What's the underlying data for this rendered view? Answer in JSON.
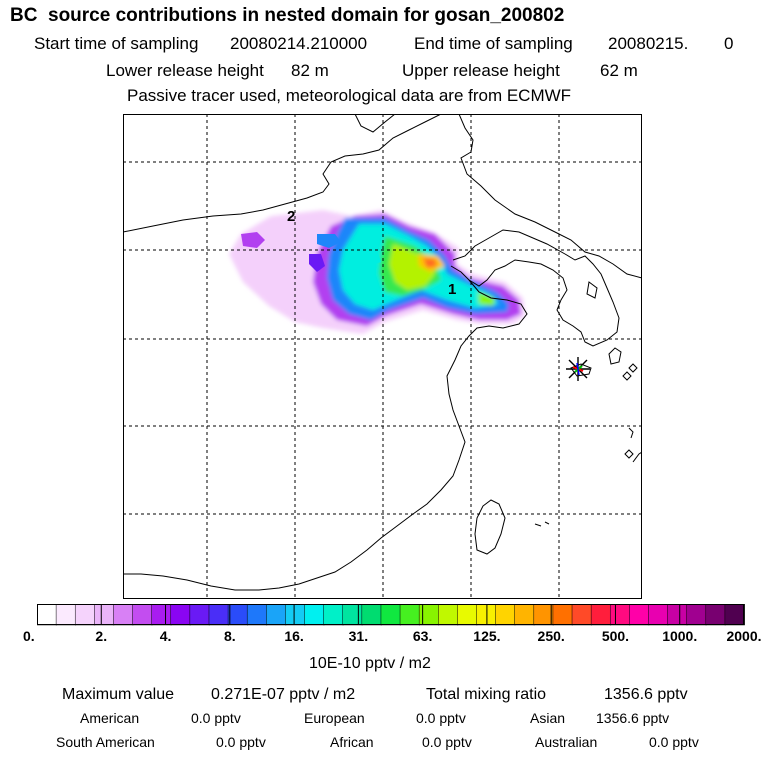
{
  "header": {
    "title": "BC  source contributions in nested domain for gosan_200802",
    "start_label": "Start time of sampling",
    "start_value": "20080214.210000",
    "end_label": "End time of sampling",
    "end_value": "20080215.",
    "end_value2": "0",
    "lower_label": "Lower release height",
    "lower_value": "82 m",
    "upper_label": "Upper release height",
    "upper_value": "62 m",
    "tracer_note": "Passive tracer used, meteorological data are from ECMWF"
  },
  "map": {
    "markers": [
      {
        "label": "2",
        "lon": 116.0,
        "lat": 43.0
      },
      {
        "label": "1",
        "lon": 122.3,
        "lat": 38.0
      }
    ],
    "receptor": {
      "name": "gosan",
      "lon": 126.2,
      "lat": 33.3
    }
  },
  "colorbar": {
    "ticks": [
      "0.",
      "2.",
      "4.",
      "8.",
      "16.",
      "31.",
      "63.",
      "125.",
      "250.",
      "500.",
      "1000.",
      "2000."
    ],
    "colors": [
      "#ffffff",
      "#fbeafe",
      "#f5d3fc",
      "#eab4f9",
      "#d880f5",
      "#c34df0",
      "#a91cf0",
      "#8a05f2",
      "#6a1af5",
      "#4a2ef7",
      "#2a4cf9",
      "#1e78fa",
      "#1aa4f8",
      "#14ccf4",
      "#00f0f0",
      "#00f0c8",
      "#00e4a0",
      "#00dc70",
      "#10e840",
      "#46f020",
      "#88f400",
      "#c0f800",
      "#e8fa00",
      "#f8f000",
      "#ffd400",
      "#ffb400",
      "#ff9400",
      "#ff7000",
      "#ff4a28",
      "#ff1e3c",
      "#ff0a80",
      "#ff00a8",
      "#e800b0",
      "#c800a4",
      "#a00090",
      "#780070",
      "#500050"
    ],
    "unit": "10E-10 pptv / m2"
  },
  "summary": {
    "max_label": "Maximum value",
    "max_value": "0.271E-07 pptv / m2",
    "total_label": "Total mixing ratio",
    "total_value": "1356.6 pptv",
    "american_label": "American",
    "american_value": "0.0 pptv",
    "european_label": "European",
    "european_value": "0.0 pptv",
    "asian_label": "Asian",
    "asian_value": "1356.6 pptv",
    "south_american_label": "South American",
    "south_american_value": "0.0 pptv",
    "african_label": "African",
    "african_value": "0.0 pptv",
    "australian_label": "Australian",
    "australian_value": "0.0 pptv"
  }
}
